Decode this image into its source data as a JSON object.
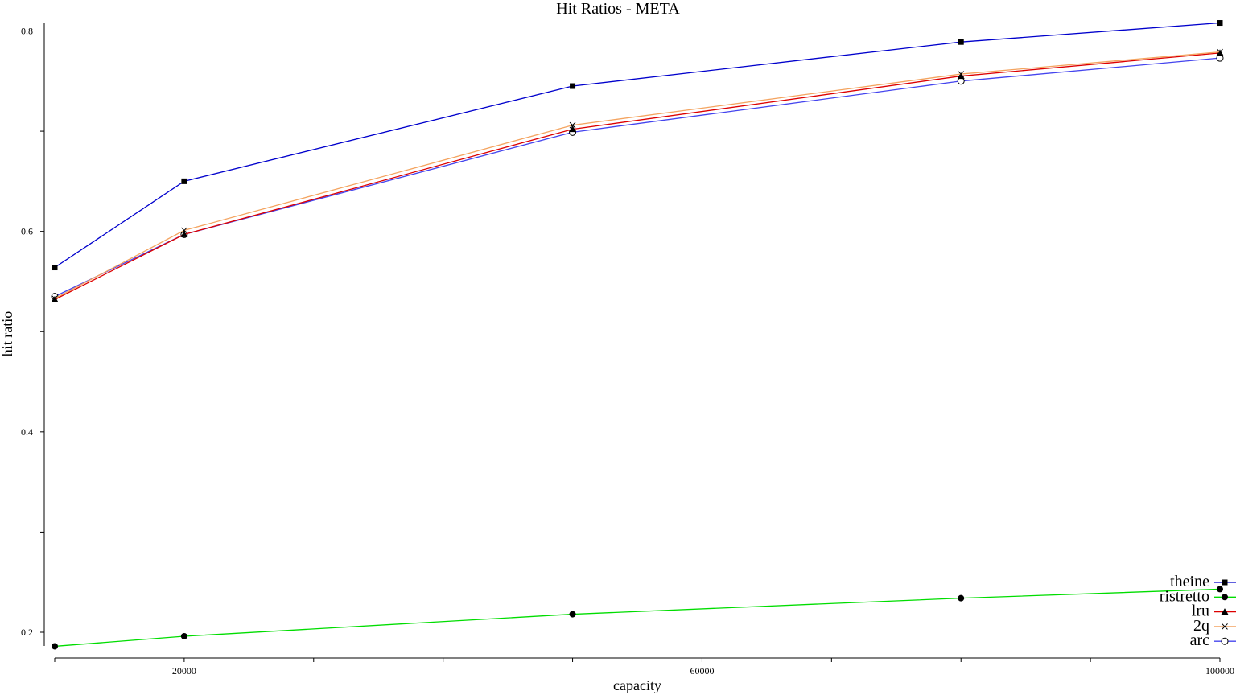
{
  "chart_data": {
    "type": "line",
    "title": "Hit Ratios - META",
    "xlabel": "capacity",
    "ylabel": "hit ratio",
    "xlim": [
      10000,
      100000
    ],
    "ylim": [
      0.2,
      0.8
    ],
    "x_ticks": [
      20000,
      60000,
      100000
    ],
    "x_minor_ticks": [
      10000,
      20000,
      30000,
      40000,
      50000,
      60000,
      70000,
      80000,
      90000,
      100000
    ],
    "y_ticks": [
      0.2,
      0.4,
      0.6,
      0.8
    ],
    "y_minor_ticks": [
      0.2,
      0.3,
      0.4,
      0.5,
      0.6,
      0.7,
      0.8
    ],
    "grid": false,
    "legend_position": "bottom-right",
    "x": [
      10000,
      20000,
      50000,
      80000,
      100000
    ],
    "series": [
      {
        "name": "theine",
        "color": "#0000cc",
        "marker": "square",
        "values": [
          0.564,
          0.65,
          0.745,
          0.789,
          0.808
        ]
      },
      {
        "name": "ristretto",
        "color": "#00dd00",
        "marker": "circle-filled",
        "values": [
          0.186,
          0.196,
          0.218,
          0.234,
          0.243
        ]
      },
      {
        "name": "lru",
        "color": "#dd0000",
        "marker": "triangle",
        "values": [
          0.532,
          0.597,
          0.702,
          0.755,
          0.778
        ]
      },
      {
        "name": "2q",
        "color": "#f4a460",
        "marker": "x",
        "values": [
          0.533,
          0.601,
          0.706,
          0.757,
          0.779
        ]
      },
      {
        "name": "arc",
        "color": "#4444ee",
        "marker": "circle-open",
        "values": [
          0.535,
          0.597,
          0.699,
          0.75,
          0.773
        ]
      }
    ]
  }
}
